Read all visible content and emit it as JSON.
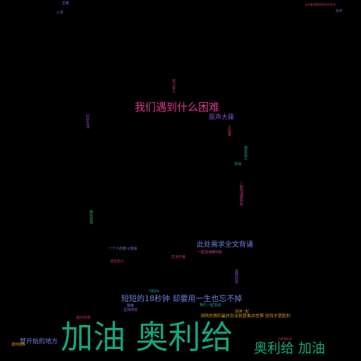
{
  "colors": {
    "background": "#000000",
    "big_green": "#18a57c",
    "magenta": "#d43a8a",
    "blue": "#6a7fd8",
    "purple": "#8a52c7",
    "red": "#c0364e",
    "orange": "#d69a1f",
    "teal": "#16a39f",
    "green": "#2fa84a",
    "yellow_green": "#9fb52a"
  },
  "words": {
    "w01": "加油 奥利给",
    "w02": "奥利给 加油",
    "w03": "我们遇到什么困难",
    "w04": "短短的18秒钟 却要用一生也忘不掉",
    "w05": "此处需求全文背诵",
    "w06": "原声大碟",
    "w07": "梦开始的地方",
    "w08": "消除恐惧的最好办法就是面对恐惧 坚持才是胜利",
    "w09": "心态",
    "w10": "王者",
    "w11": "加油",
    "w12": "当年看到都是寒冬的季节",
    "w13": "我们一起加油",
    "w14": "一个人的奋斗加油",
    "w15": "致敬",
    "w16": "快手",
    "w17": "遇到困难",
    "w18": "面对恐惧",
    "w19": "一起加油奥利给",
    "w20": "不要放弃",
    "w21": "坚持到底",
    "w22": "加油一起",
    "w23": "送给自己",
    "w24": "生活不易",
    "w25": "为梦想加油",
    "w26": "努力奋斗",
    "w27": "正能量",
    "w28": "好好生活",
    "w29": "勇往直前",
    "w30": "相信自己"
  }
}
